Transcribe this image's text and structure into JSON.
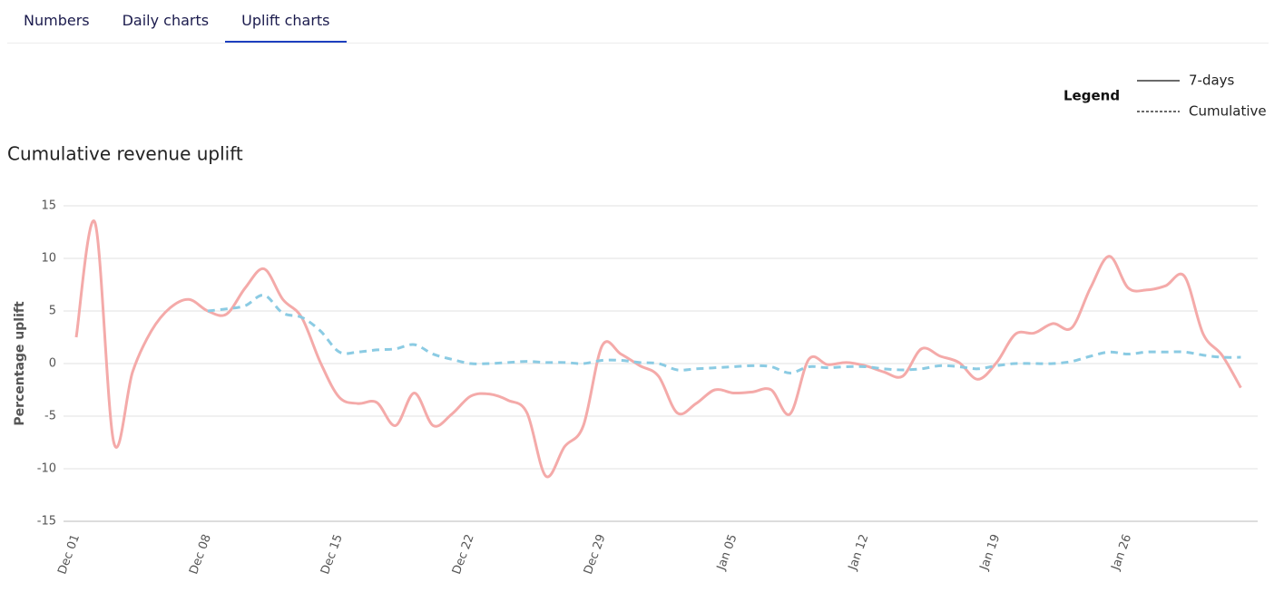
{
  "tabs": {
    "items": [
      "Numbers",
      "Daily charts",
      "Uplift charts"
    ],
    "active": 2
  },
  "chart_data": {
    "type": "line",
    "title": "Cumulative revenue uplift",
    "legend_title": "Legend",
    "y_label": "Percentage uplift",
    "categories": [
      "Dec 01",
      null,
      null,
      null,
      null,
      null,
      null,
      "Dec 08",
      null,
      null,
      null,
      null,
      null,
      null,
      "Dec 15",
      null,
      null,
      null,
      null,
      null,
      null,
      "Dec 22",
      null,
      null,
      null,
      null,
      null,
      null,
      "Dec 29",
      null,
      null,
      null,
      null,
      null,
      null,
      "Jan 05",
      null,
      null,
      null,
      null,
      null,
      null,
      "Jan 12",
      null,
      null,
      null,
      null,
      null,
      null,
      "Jan 19",
      null,
      null,
      null,
      null,
      null,
      null,
      "Jan 26",
      null,
      null,
      null,
      null,
      null,
      null
    ],
    "series": [
      {
        "name": "7-days",
        "color": "#f4aaa9",
        "dashed": false,
        "values": [
          2.5,
          13.4,
          -7.5,
          -0.8,
          3.1,
          5.3,
          6.1,
          5.0,
          4.7,
          7.2,
          9.0,
          6.1,
          4.4,
          0.1,
          -3.2,
          -3.8,
          -3.7,
          -5.9,
          -2.8,
          -5.9,
          -4.8,
          -3.1,
          -2.9,
          -3.5,
          -4.7,
          -10.7,
          -7.9,
          -5.9,
          1.7,
          0.9,
          -0.2,
          -1.2,
          -4.7,
          -3.8,
          -2.5,
          -2.8,
          -2.7,
          -2.5,
          -4.8,
          0.4,
          -0.1,
          0.1,
          -0.2,
          -0.8,
          -1.2,
          1.4,
          0.7,
          0.1,
          -1.5,
          0.1,
          2.8,
          2.9,
          3.8,
          3.4,
          7.2,
          10.2,
          7.2,
          7.0,
          7.4,
          8.3,
          2.8,
          0.8,
          -2.3
        ]
      },
      {
        "name": "Cumulative",
        "color": "#8bcbe3",
        "dashed": true,
        "values": [
          null,
          null,
          null,
          null,
          null,
          null,
          null,
          5.0,
          5.2,
          5.5,
          6.5,
          4.8,
          4.4,
          3.1,
          1.1,
          1.1,
          1.3,
          1.4,
          1.8,
          0.9,
          0.4,
          0,
          0,
          0.1,
          0.2,
          0.1,
          0.1,
          0,
          0.3,
          0.3,
          0.1,
          0,
          -0.6,
          -0.5,
          -0.4,
          -0.3,
          -0.2,
          -0.3,
          -0.9,
          -0.3,
          -0.4,
          -0.3,
          -0.3,
          -0.5,
          -0.6,
          -0.5,
          -0.2,
          -0.3,
          -0.5,
          -0.2,
          0,
          0,
          0,
          0.2,
          0.7,
          1.1,
          0.9,
          1.1,
          1.1,
          1.1,
          0.8,
          0.6,
          0.6
        ]
      }
    ],
    "ylim": [
      -15,
      15
    ],
    "yticks": [
      -15,
      -10,
      -5,
      0,
      5,
      10,
      15
    ],
    "grid": true
  }
}
